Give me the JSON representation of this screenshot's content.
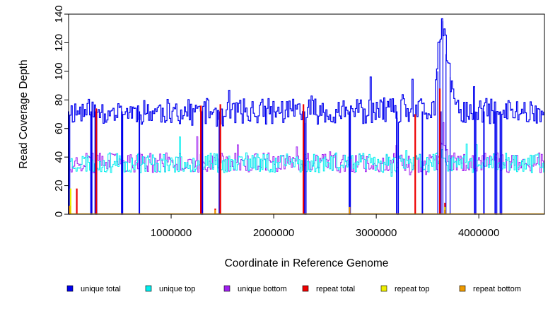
{
  "chart_data": {
    "type": "line",
    "title": "",
    "xlabel": "Coordinate in Reference Genome",
    "ylabel": "Read Coverage Depth",
    "xlim": [
      0,
      4640000
    ],
    "ylim": [
      0,
      140
    ],
    "x_ticks": [
      1000000,
      2000000,
      3000000,
      4000000
    ],
    "x_tick_labels": [
      "1000000",
      "2000000",
      "3000000",
      "4000000"
    ],
    "y_ticks": [
      0,
      20,
      40,
      60,
      80,
      100,
      120,
      140
    ],
    "y_tick_labels": [
      "0",
      "20",
      "40",
      "60",
      "80",
      "100",
      "120",
      "140"
    ],
    "grid": false,
    "legend_position": "bottom",
    "series": [
      {
        "name": "unique total",
        "color": "#0000ee",
        "profile": {
          "baseline": 72,
          "amplitude": 9,
          "step": 12000,
          "seed": 11
        },
        "points": [
          [
            1200000,
            70
          ],
          [
            1500000,
            68
          ],
          [
            2000000,
            72
          ],
          [
            2500000,
            69
          ],
          [
            3000000,
            71
          ],
          [
            3400000,
            74
          ],
          [
            3600000,
            100
          ],
          [
            3620000,
            122
          ],
          [
            3650000,
            135
          ],
          [
            3680000,
            112
          ],
          [
            3720000,
            96
          ],
          [
            3800000,
            74
          ],
          [
            4300000,
            72
          ],
          [
            4640000,
            70
          ]
        ],
        "dips": [
          [
            0,
            0
          ],
          [
            220000,
            0
          ],
          [
            260000,
            0
          ],
          [
            520000,
            0
          ],
          [
            690000,
            0
          ],
          [
            1300000,
            0
          ],
          [
            1470000,
            0
          ],
          [
            2300000,
            0
          ],
          [
            2740000,
            0
          ],
          [
            3200000,
            0
          ],
          [
            3450000,
            0
          ],
          [
            3630000,
            0
          ],
          [
            3960000,
            0
          ],
          [
            4050000,
            0
          ],
          [
            4160000,
            0
          ],
          [
            4210000,
            0
          ]
        ]
      },
      {
        "name": "unique top",
        "color": "#00eeee",
        "profile": {
          "baseline": 36,
          "amplitude": 7,
          "step": 12000,
          "seed": 23
        },
        "points": [
          [
            1000000,
            37
          ],
          [
            2000000,
            36
          ],
          [
            3000000,
            37
          ],
          [
            3650000,
            45
          ],
          [
            4640000,
            36
          ]
        ]
      },
      {
        "name": "unique bottom",
        "color": "#a020f0",
        "profile": {
          "baseline": 36,
          "amplitude": 7,
          "step": 12000,
          "seed": 37
        },
        "points": [
          [
            1000000,
            35
          ],
          [
            2000000,
            36
          ],
          [
            3000000,
            35
          ],
          [
            3650000,
            58
          ],
          [
            4640000,
            36
          ]
        ]
      },
      {
        "name": "repeat total",
        "color": "#ee0000",
        "profile": {
          "baseline": 0,
          "amplitude": 0,
          "step": 12000,
          "seed": 0
        },
        "points": [
          [
            270000,
            74
          ],
          [
            1290000,
            76
          ],
          [
            1480000,
            77
          ],
          [
            2290000,
            77
          ],
          [
            3380000,
            70
          ],
          [
            3620000,
            88
          ],
          [
            3670000,
            8
          ],
          [
            1430000,
            4
          ],
          [
            80000,
            18
          ]
        ]
      },
      {
        "name": "repeat top",
        "color": "#eeee00",
        "profile": {
          "baseline": 0,
          "amplitude": 0,
          "step": 12000,
          "seed": 0
        },
        "points": [
          [
            20000,
            18
          ],
          [
            3670000,
            5
          ]
        ]
      },
      {
        "name": "repeat bottom",
        "color": "#ee9a00",
        "profile": {
          "baseline": 0,
          "amplitude": 0,
          "step": 12000,
          "seed": 0
        },
        "points": [
          [
            10000,
            6
          ],
          [
            1430000,
            3
          ],
          [
            2740000,
            5
          ],
          [
            3670000,
            3
          ]
        ]
      }
    ]
  }
}
